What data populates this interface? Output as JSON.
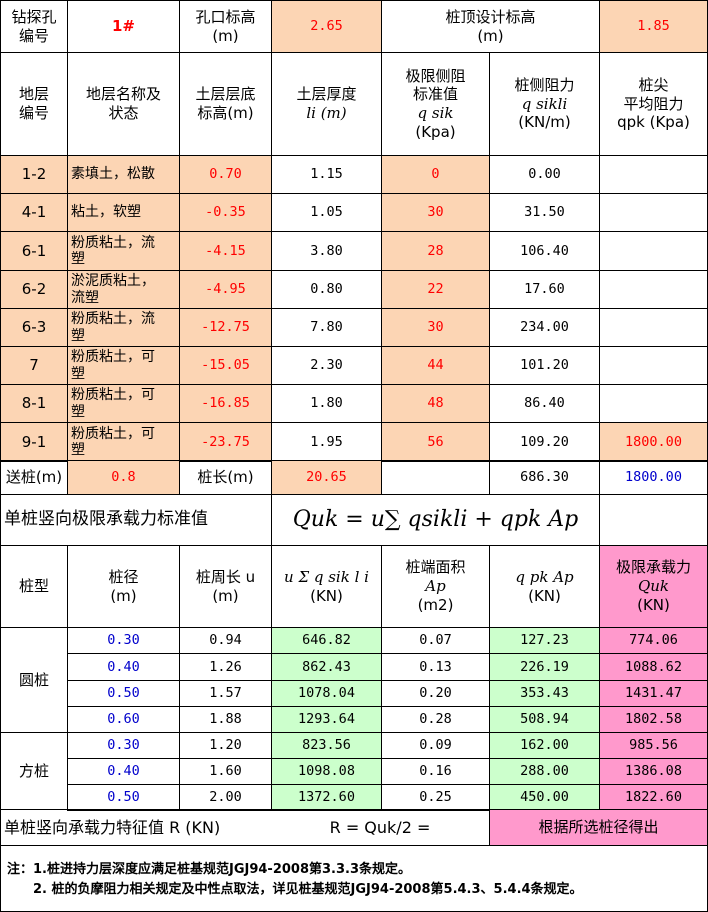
{
  "header": {
    "borehole_label": "钻探孔\n编号",
    "borehole_value": "1#",
    "collar_label": "孔口标高\n(m)",
    "collar_value": "2.65",
    "pile_top_label": "桩顶设计标高\n(m)",
    "pile_top_value": "1.85"
  },
  "columns": {
    "layer_no": "地层\n编号",
    "layer_name": "地层名称及\n状态",
    "bottom_elev": "土层层底\n标高(m)",
    "thickness_line1": "土层厚度",
    "thickness_line2": "li  (m)",
    "qsik_line1": "极限侧阻",
    "qsik_line2": "标准值",
    "qsik_line3": "q sik",
    "qsik_line4": "(Kpa)",
    "side_line1": "桩侧阻力",
    "side_line2": "q sikli",
    "side_line3": "(KN/m)",
    "qpk_line1": "桩尖",
    "qpk_line2": "平均阻力",
    "qpk_line3": "qpk (Kpa)"
  },
  "layers": [
    {
      "no": "1-2",
      "name": "素填土，松散",
      "bottom": "0.70",
      "thick": "1.15",
      "qsik": "0",
      "side": "0.00",
      "qpk": ""
    },
    {
      "no": "4-1",
      "name": "粘土，软塑",
      "bottom": "-0.35",
      "thick": "1.05",
      "qsik": "30",
      "side": "31.50",
      "qpk": ""
    },
    {
      "no": "6-1",
      "name": "粉质粘土，流\n塑",
      "bottom": "-4.15",
      "thick": "3.80",
      "qsik": "28",
      "side": "106.40",
      "qpk": ""
    },
    {
      "no": "6-2",
      "name": "淤泥质粘土，\n流塑",
      "bottom": "-4.95",
      "thick": "0.80",
      "qsik": "22",
      "side": "17.60",
      "qpk": ""
    },
    {
      "no": "6-3",
      "name": "粉质粘土，流\n塑",
      "bottom": "-12.75",
      "thick": "7.80",
      "qsik": "30",
      "side": "234.00",
      "qpk": ""
    },
    {
      "no": "7",
      "name": "粉质粘土，可\n塑",
      "bottom": "-15.05",
      "thick": "2.30",
      "qsik": "44",
      "side": "101.20",
      "qpk": ""
    },
    {
      "no": "8-1",
      "name": "粉质粘土，可\n塑",
      "bottom": "-16.85",
      "thick": "1.80",
      "qsik": "48",
      "side": "86.40",
      "qpk": ""
    },
    {
      "no": "9-1",
      "name": "粉质粘土，可\n塑",
      "bottom": "-23.75",
      "thick": "1.95",
      "qsik": "56",
      "side": "109.20",
      "qpk": "1800.00"
    }
  ],
  "summary": {
    "feed_label": "送桩(m)",
    "feed_value": "0.8",
    "length_label": "桩长(m)",
    "length_value": "20.65",
    "side_total": "686.30",
    "qpk_total": "1800.00"
  },
  "capacity": {
    "title": "单桩竖向极限承载力标准值",
    "formula": "Quk = u∑ qsikli + qpk Ap"
  },
  "capacity_columns": {
    "type": "桩型",
    "diameter": "桩径\n(m)",
    "perimeter": "桩周长  u\n(m)",
    "usum_line1": "u Σ q sik  l i",
    "usum_line2": "(KN)",
    "area_line1": "桩端面积",
    "area_line2": "Ap",
    "area_line3": "(m2)",
    "qpkap_line1": "q pk  Ap",
    "qpkap_line2": "(KN)",
    "quk_line1": "极限承载力",
    "quk_line2": "Quk",
    "quk_line3": "(KN)"
  },
  "piles": {
    "round_label": "圆桩",
    "square_label": "方桩",
    "round": [
      {
        "d": "0.30",
        "u": "0.94",
        "usum": "646.82",
        "ap": "0.07",
        "qpkap": "127.23",
        "quk": "774.06"
      },
      {
        "d": "0.40",
        "u": "1.26",
        "usum": "862.43",
        "ap": "0.13",
        "qpkap": "226.19",
        "quk": "1088.62"
      },
      {
        "d": "0.50",
        "u": "1.57",
        "usum": "1078.04",
        "ap": "0.20",
        "qpkap": "353.43",
        "quk": "1431.47"
      },
      {
        "d": "0.60",
        "u": "1.88",
        "usum": "1293.64",
        "ap": "0.28",
        "qpkap": "508.94",
        "quk": "1802.58"
      }
    ],
    "square": [
      {
        "d": "0.30",
        "u": "1.20",
        "usum": "823.56",
        "ap": "0.09",
        "qpkap": "162.00",
        "quk": "985.56"
      },
      {
        "d": "0.40",
        "u": "1.60",
        "usum": "1098.08",
        "ap": "0.16",
        "qpkap": "288.00",
        "quk": "1386.08"
      },
      {
        "d": "0.50",
        "u": "2.00",
        "usum": "1372.60",
        "ap": "0.25",
        "qpkap": "450.00",
        "quk": "1822.60"
      }
    ]
  },
  "characteristic": {
    "label": "单桩竖向承载力特征值 R (KN)",
    "formula": "R = Quk/2 =",
    "note": "根据所选桩径得出"
  },
  "notes": {
    "line1": "注：1.桩进持力层深度应满足桩基规范JGJ94-2008第3.3.3条规定。",
    "line2": "2. 桩的负摩阻力相关规定及中性点取法，详见桩基规范JGJ94-2008第5.4.3、5.4.4条规定。"
  }
}
